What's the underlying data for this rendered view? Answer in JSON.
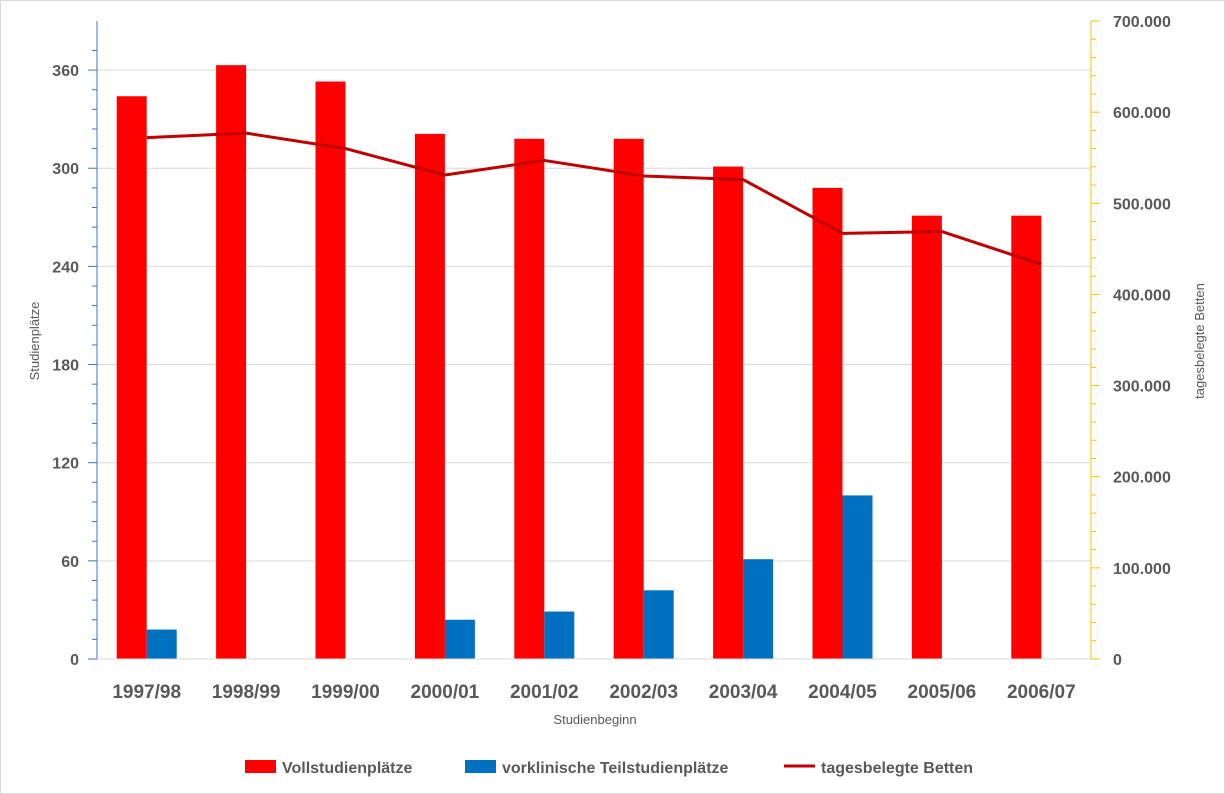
{
  "chart_data": {
    "type": "bar",
    "categories": [
      "1997/98",
      "1998/99",
      "1999/00",
      "2000/01",
      "2001/02",
      "2002/03",
      "2003/04",
      "2004/05",
      "2005/06",
      "2006/07"
    ],
    "series": [
      {
        "name": "Vollstudienplätze",
        "type": "bar",
        "axis": "left",
        "color": "#ff0000",
        "values": [
          344,
          363,
          353,
          321,
          318,
          318,
          301,
          288,
          271,
          271
        ]
      },
      {
        "name": "vorklinische Teilstudienplätze",
        "type": "bar",
        "axis": "left",
        "color": "#0070c0",
        "values": [
          18,
          0,
          0,
          24,
          29,
          42,
          61,
          100,
          0,
          0
        ]
      },
      {
        "name": "tagesbelegte Betten",
        "type": "line",
        "axis": "right",
        "color": "#c00000",
        "values": [
          572000,
          577000,
          560000,
          531000,
          547000,
          530000,
          526000,
          467000,
          469000,
          433000
        ]
      }
    ],
    "xlabel": "Studienbeginn",
    "ylabel": "Studienplätze",
    "y2label": "tagesbelegte Betten",
    "ylim": [
      0,
      390
    ],
    "y2lim": [
      0,
      700000
    ],
    "yticks": [
      "0",
      "60",
      "120",
      "180",
      "240",
      "300",
      "360"
    ],
    "y2ticks": [
      "0",
      "100.000",
      "200.000",
      "300.000",
      "400.000",
      "500.000",
      "600.000",
      "700.000"
    ],
    "grid": true,
    "legend": "bottom"
  }
}
